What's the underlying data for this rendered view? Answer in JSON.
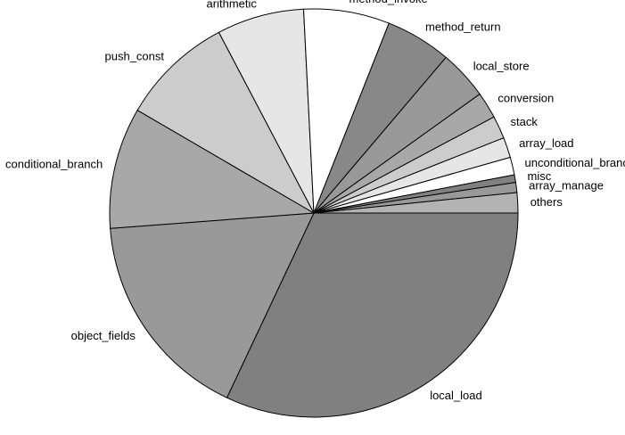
{
  "chart_data": {
    "type": "pie",
    "start_angle_deg": 0,
    "direction": "clockwise",
    "slices": [
      {
        "label": "local_load",
        "value": 32.0,
        "color": "#808080"
      },
      {
        "label": "object_fields",
        "value": 16.8,
        "color": "#999999"
      },
      {
        "label": "conditional_branch",
        "value": 9.6,
        "color": "#a8a8a8"
      },
      {
        "label": "push_const",
        "value": 8.9,
        "color": "#cccccc"
      },
      {
        "label": "arithmetic",
        "value": 6.9,
        "color": "#e6e6e6"
      },
      {
        "label": "method_invoke",
        "value": 6.8,
        "color": "#ffffff"
      },
      {
        "label": "method_return",
        "value": 5.2,
        "color": "#888888"
      },
      {
        "label": "local_store",
        "value": 3.9,
        "color": "#999999"
      },
      {
        "label": "conversion",
        "value": 2.1,
        "color": "#a8a8a8"
      },
      {
        "label": "stack",
        "value": 1.8,
        "color": "#cccccc"
      },
      {
        "label": "array_load",
        "value": 1.6,
        "color": "#e6e6e6"
      },
      {
        "label": "unconditional_branch",
        "value": 1.4,
        "color": "#ffffff"
      },
      {
        "label": "misc",
        "value": 0.6,
        "color": "#808080"
      },
      {
        "label": "array_manage",
        "value": 0.8,
        "color": "#999999"
      },
      {
        "label": "others",
        "value": 1.6,
        "color": "#b3b3b3"
      }
    ]
  }
}
